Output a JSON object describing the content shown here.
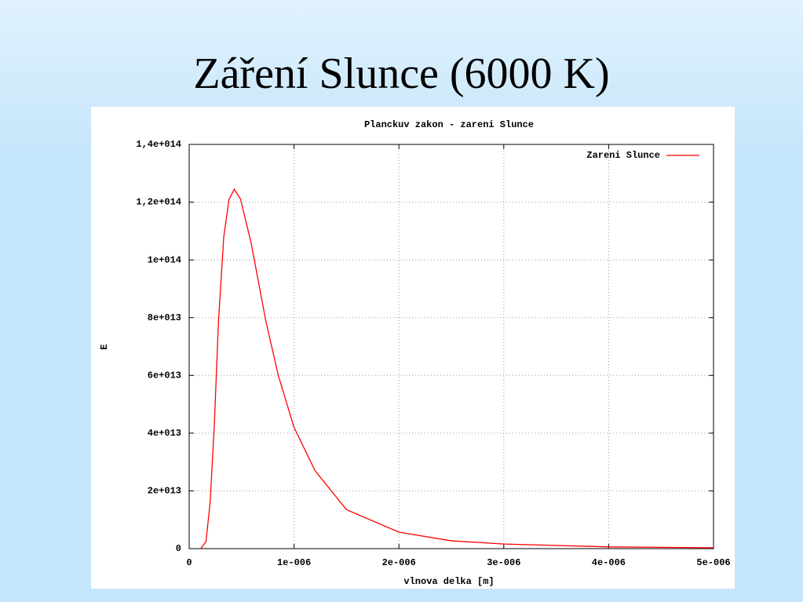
{
  "slide": {
    "title": "Záření Slunce (6000 K)"
  },
  "chart_data": {
    "type": "line",
    "title": "Planckuv zakon - zareni Slunce",
    "x_label": "vlnova delka [m]",
    "y_label": "E",
    "x": [
      1.1e-07,
      1.6e-07,
      2e-07,
      2.4e-07,
      2.8e-07,
      3.3e-07,
      3.8e-07,
      4.3e-07,
      4.9e-07,
      5.9e-07,
      7.3e-07,
      8.5e-07,
      1e-06,
      1.2e-06,
      1.5e-06,
      2e-06,
      2.5e-06,
      3e-06,
      4e-06,
      5e-06
    ],
    "series": [
      {
        "name": "Zareni Slunce",
        "color": "#ff0000",
        "values": [
          0,
          2400000000000.0,
          16000000000000.0,
          43000000000000.0,
          79000000000000.0,
          108000000000000.0,
          121000000000000.0,
          124500000000000.0,
          121000000000000.0,
          106000000000000.0,
          79000000000000.0,
          60000000000000.0,
          42000000000000.0,
          27000000000000.0,
          13500000000000.0,
          5700000000000.0,
          2700000000000.0,
          1600000000000.0,
          600000000000.0,
          300000000000.0
        ]
      }
    ],
    "xlim": [
      0,
      5e-06
    ],
    "xticks": [
      0,
      {
        "value": 1e-06,
        "label": "1e-006"
      },
      {
        "value": 2e-06,
        "label": "2e-006"
      },
      {
        "value": 3e-06,
        "label": "3e-006"
      },
      {
        "value": 4e-06,
        "label": "4e-006"
      },
      {
        "value": 5e-06,
        "label": "5e-006"
      }
    ],
    "ylim": [
      0,
      140000000000000.0
    ],
    "yticks": [
      0,
      {
        "value": 20000000000000.0,
        "label": "2e+013"
      },
      {
        "value": 40000000000000.0,
        "label": "4e+013"
      },
      {
        "value": 60000000000000.0,
        "label": "6e+013"
      },
      {
        "value": 80000000000000.0,
        "label": "8e+013"
      },
      {
        "value": 100000000000000.0,
        "label": "1e+014"
      },
      {
        "value": 120000000000000.0,
        "label": "1,2e+014"
      },
      {
        "value": 140000000000000.0,
        "label": "1,4e+014"
      }
    ],
    "grid": true,
    "legend": "top-right"
  }
}
